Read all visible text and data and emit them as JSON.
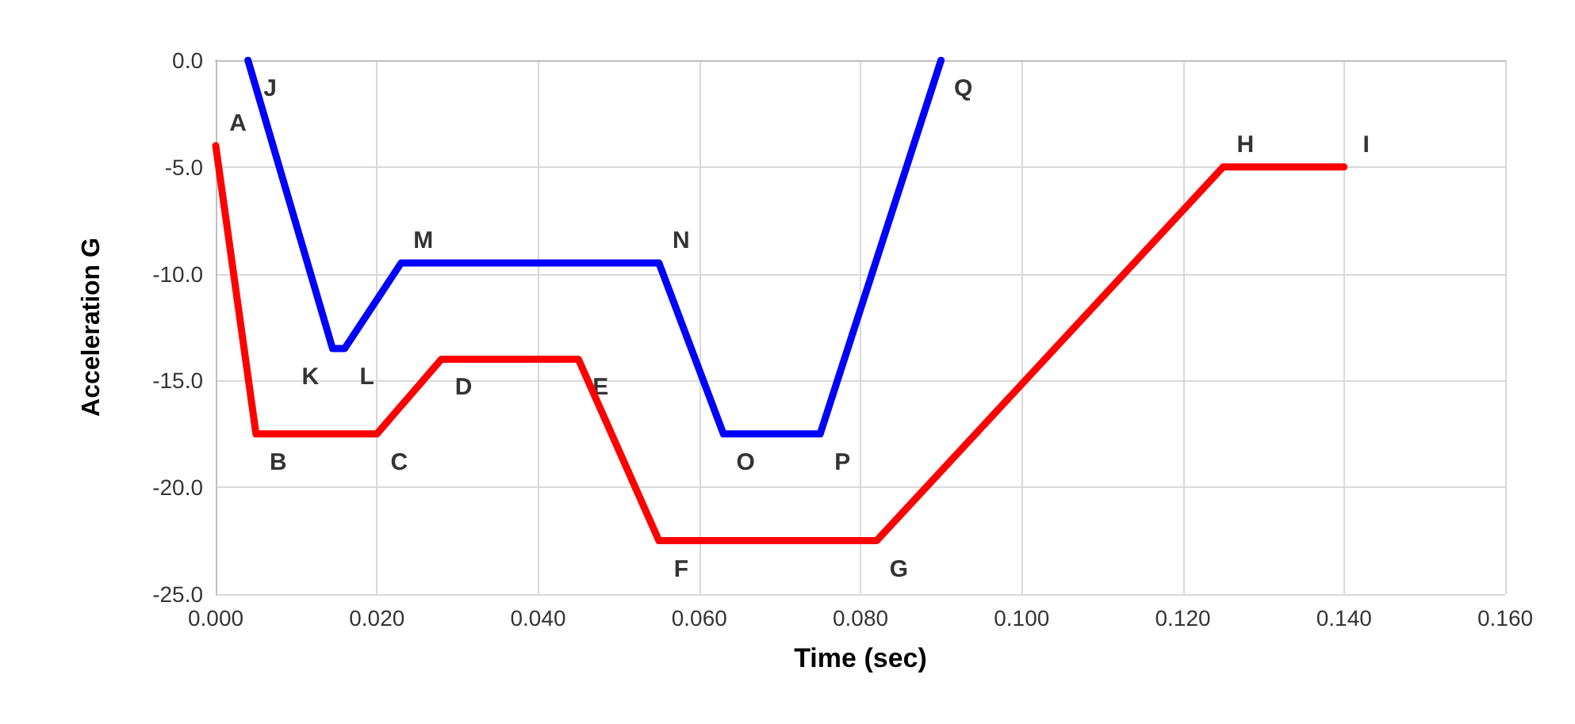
{
  "chart_data": {
    "type": "line",
    "xlabel": "Time (sec)",
    "ylabel": "Acceleration G",
    "xlim": [
      0,
      0.16
    ],
    "ylim": [
      -25,
      0
    ],
    "xticks": [
      {
        "value": 0,
        "label": "0.000"
      },
      {
        "value": 0.02,
        "label": "0.020"
      },
      {
        "value": 0.04,
        "label": "0.040"
      },
      {
        "value": 0.06,
        "label": "0.060"
      },
      {
        "value": 0.08,
        "label": "0.080"
      },
      {
        "value": 0.1,
        "label": "0.100"
      },
      {
        "value": 0.12,
        "label": "0.120"
      },
      {
        "value": 0.14,
        "label": "0.140"
      },
      {
        "value": 0.16,
        "label": "0.160"
      }
    ],
    "yticks": [
      {
        "value": -25,
        "label": "-25.0"
      },
      {
        "value": -20,
        "label": "-20.0"
      },
      {
        "value": -15,
        "label": "-15.0"
      },
      {
        "value": -10,
        "label": "-10.0"
      },
      {
        "value": -5,
        "label": "-5.0"
      },
      {
        "value": 0,
        "label": "0.0"
      }
    ],
    "grid": true,
    "marker": "none",
    "line_style": "solid",
    "series": [
      {
        "color": "#ff0000",
        "x": [
          0,
          0.005,
          0.02,
          0.028,
          0.045,
          0.055,
          0.082,
          0.125,
          0.14
        ],
        "values": [
          -4,
          -17.5,
          -17.5,
          -14,
          -14,
          -22.5,
          -22.5,
          -5,
          -5
        ]
      },
      {
        "color": "#0000ff",
        "x": [
          0.004,
          0.0145,
          0.016,
          0.023,
          0.055,
          0.063,
          0.075,
          0.09
        ],
        "values": [
          0,
          -13.5,
          -13.5,
          -9.5,
          -9.5,
          -17.5,
          -17.5,
          0
        ]
      }
    ],
    "annotations": [
      {
        "text": "A",
        "x": 0,
        "y": -4
      },
      {
        "text": "B",
        "x": 0.005,
        "y": -17.5
      },
      {
        "text": "C",
        "x": 0.02,
        "y": -17.5
      },
      {
        "text": "D",
        "x": 0.028,
        "y": -14
      },
      {
        "text": "E",
        "x": 0.045,
        "y": -14
      },
      {
        "text": "F",
        "x": 0.055,
        "y": -22.5
      },
      {
        "text": "G",
        "x": 0.082,
        "y": -22.5
      },
      {
        "text": "H",
        "x": 0.125,
        "y": -5
      },
      {
        "text": "I",
        "x": 0.14,
        "y": -5
      },
      {
        "text": "J",
        "x": 0.004,
        "y": 0
      },
      {
        "text": "K",
        "x": 0.0145,
        "y": -13.5
      },
      {
        "text": "L",
        "x": 0.016,
        "y": -13.5
      },
      {
        "text": "M",
        "x": 0.023,
        "y": -9.5
      },
      {
        "text": "N",
        "x": 0.055,
        "y": -9.5
      },
      {
        "text": "O",
        "x": 0.063,
        "y": -17.5
      },
      {
        "text": "P",
        "x": 0.075,
        "y": -17.5
      },
      {
        "text": "Q",
        "x": 0.09,
        "y": 0
      }
    ]
  }
}
